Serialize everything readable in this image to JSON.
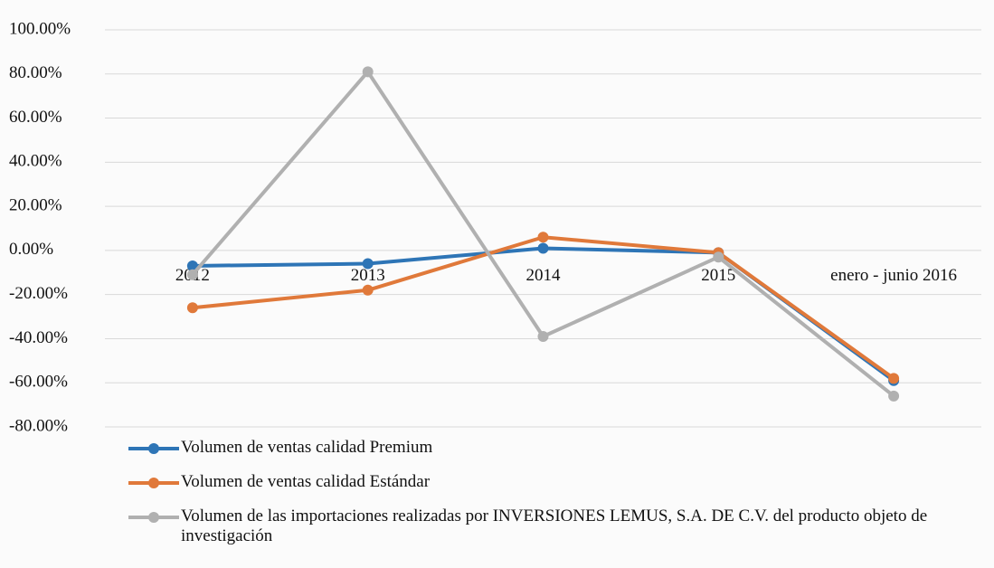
{
  "chart_data": {
    "type": "line",
    "categories": [
      "2012",
      "2013",
      "2014",
      "2015",
      "enero - junio 2016"
    ],
    "series": [
      {
        "name": "Volumen de ventas calidad Premium",
        "color": "#2e75b6",
        "values": [
          -7,
          -6,
          1,
          -1,
          -59
        ]
      },
      {
        "name": "Volumen de ventas calidad Estándar",
        "color": "#e0793a",
        "values": [
          -26,
          -18,
          6,
          -1,
          -58
        ]
      },
      {
        "name": "Volumen de las importaciones realizadas por INVERSIONES LEMUS, S.A. DE C.V. del producto objeto de investigación",
        "color": "#b0b0b0",
        "values": [
          -11,
          81,
          -39,
          -3,
          -66
        ]
      }
    ],
    "ylim": [
      -80,
      100
    ],
    "yticks": [
      {
        "value": -80,
        "label": "-80.00%"
      },
      {
        "value": -60,
        "label": "-60.00%"
      },
      {
        "value": -40,
        "label": "-40.00%"
      },
      {
        "value": -20,
        "label": "-20.00%"
      },
      {
        "value": 0,
        "label": "0.00%"
      },
      {
        "value": 20,
        "label": "20.00%"
      },
      {
        "value": 40,
        "label": "40.00%"
      },
      {
        "value": 60,
        "label": "60.00%"
      },
      {
        "value": 80,
        "label": "80.00%"
      },
      {
        "value": 100,
        "label": "100.00%"
      }
    ],
    "grid": true
  }
}
